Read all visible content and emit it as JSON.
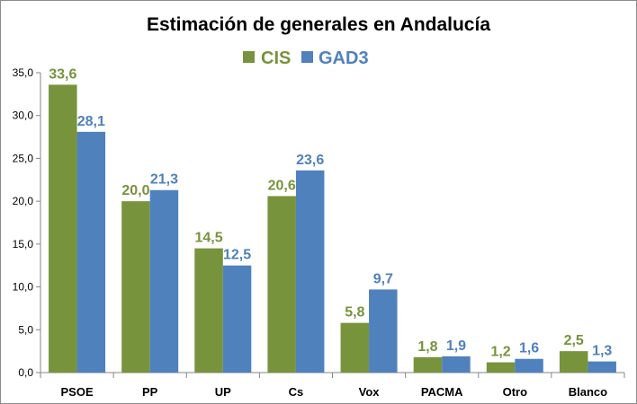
{
  "chart_data": {
    "type": "bar",
    "title": "Estimación de generales en Andalucía",
    "categories": [
      "PSOE",
      "PP",
      "UP",
      "Cs",
      "Vox",
      "PACMA",
      "Otro",
      "Blanco"
    ],
    "series": [
      {
        "name": "CIS",
        "color": "#77933c",
        "values": [
          33.6,
          20.0,
          14.5,
          20.6,
          5.8,
          1.8,
          1.2,
          2.5
        ],
        "labels": [
          "33,6",
          "20,0",
          "14,5",
          "20,6",
          "5,8",
          "1,8",
          "1,2",
          "2,5"
        ]
      },
      {
        "name": "GAD3",
        "color": "#4f81bd",
        "values": [
          28.1,
          21.3,
          12.5,
          23.6,
          9.7,
          1.9,
          1.6,
          1.3
        ],
        "labels": [
          "28,1",
          "21,3",
          "12,5",
          "23,6",
          "9,7",
          "1,9",
          "1,6",
          "1,3"
        ]
      }
    ],
    "ylim": [
      0,
      35
    ],
    "yticks": [
      0,
      5,
      10,
      15,
      20,
      25,
      30,
      35
    ],
    "ytick_labels": [
      "0,0",
      "5,0",
      "10,0",
      "15,0",
      "20,0",
      "25,0",
      "30,0",
      "35,0"
    ],
    "xlabel": "",
    "ylabel": "",
    "legend_position": "top-center",
    "grid": false
  }
}
